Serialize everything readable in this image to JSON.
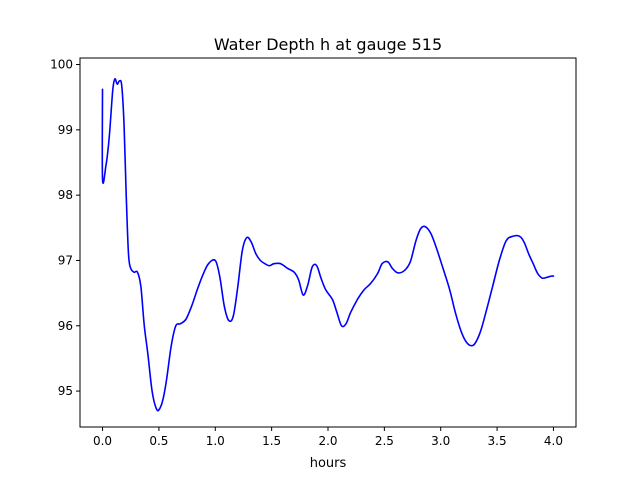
{
  "chart_data": {
    "type": "line",
    "title": "Water Depth h at gauge 515",
    "xlabel": "hours",
    "ylabel": "",
    "xlim": [
      -0.2,
      4.2
    ],
    "ylim": [
      94.45,
      100.1
    ],
    "grid": false,
    "legend": "none",
    "x_ticks": [
      0.0,
      0.5,
      1.0,
      1.5,
      2.0,
      2.5,
      3.0,
      3.5,
      4.0
    ],
    "x_tick_labels": [
      "0.0",
      "0.5",
      "1.0",
      "1.5",
      "2.0",
      "2.5",
      "3.0",
      "3.5",
      "4.0"
    ],
    "y_ticks": [
      95,
      96,
      97,
      98,
      99,
      100
    ],
    "y_tick_labels": [
      "95",
      "96",
      "97",
      "98",
      "99",
      "100"
    ],
    "series": [
      {
        "color": "#0000ff",
        "x": [
          0.0,
          0.0,
          0.03,
          0.06,
          0.09,
          0.11,
          0.13,
          0.15,
          0.17,
          0.19,
          0.21,
          0.23,
          0.25,
          0.28,
          0.31,
          0.34,
          0.37,
          0.4,
          0.44,
          0.48,
          0.51,
          0.54,
          0.57,
          0.61,
          0.65,
          0.69,
          0.74,
          0.79,
          0.84,
          0.89,
          0.94,
          1.0,
          1.04,
          1.08,
          1.12,
          1.16,
          1.2,
          1.24,
          1.28,
          1.32,
          1.36,
          1.4,
          1.44,
          1.48,
          1.52,
          1.58,
          1.64,
          1.7,
          1.74,
          1.78,
          1.82,
          1.86,
          1.9,
          1.94,
          1.98,
          2.04,
          2.08,
          2.12,
          2.16,
          2.2,
          2.26,
          2.32,
          2.38,
          2.44,
          2.48,
          2.53,
          2.57,
          2.62,
          2.68,
          2.73,
          2.78,
          2.82,
          2.86,
          2.91,
          2.96,
          3.02,
          3.08,
          3.13,
          3.18,
          3.22,
          3.26,
          3.3,
          3.35,
          3.4,
          3.46,
          3.52,
          3.58,
          3.64,
          3.7,
          3.74,
          3.78,
          3.82,
          3.86,
          3.9,
          3.94,
          3.98,
          4.0
        ],
        "y": [
          99.62,
          98.25,
          98.45,
          98.9,
          99.6,
          99.78,
          99.7,
          99.75,
          99.68,
          99.1,
          98.0,
          97.1,
          96.88,
          96.82,
          96.82,
          96.6,
          96.0,
          95.6,
          95.0,
          94.72,
          94.74,
          94.9,
          95.2,
          95.7,
          96.0,
          96.03,
          96.1,
          96.3,
          96.55,
          96.78,
          96.95,
          97.0,
          96.75,
          96.3,
          96.08,
          96.15,
          96.6,
          97.15,
          97.35,
          97.28,
          97.1,
          97.0,
          96.95,
          96.92,
          96.95,
          96.95,
          96.88,
          96.82,
          96.7,
          96.47,
          96.62,
          96.9,
          96.92,
          96.72,
          96.55,
          96.4,
          96.2,
          96.0,
          96.03,
          96.2,
          96.4,
          96.55,
          96.65,
          96.8,
          96.95,
          96.98,
          96.88,
          96.81,
          96.85,
          96.98,
          97.3,
          97.48,
          97.52,
          97.42,
          97.2,
          96.88,
          96.55,
          96.2,
          95.92,
          95.77,
          95.7,
          95.72,
          95.9,
          96.2,
          96.6,
          97.0,
          97.3,
          97.37,
          97.37,
          97.28,
          97.1,
          96.95,
          96.8,
          96.73,
          96.74,
          96.76,
          96.76
        ]
      }
    ]
  }
}
